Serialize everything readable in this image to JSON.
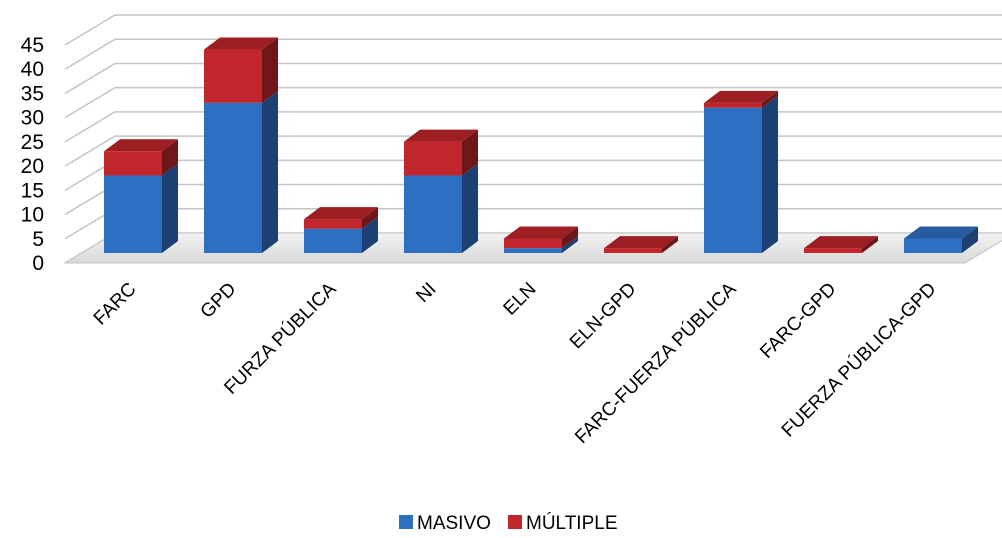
{
  "chart_data": {
    "type": "bar",
    "stacked": true,
    "three_d": true,
    "title": "",
    "xlabel": "",
    "ylabel": "",
    "ylim": [
      0,
      45
    ],
    "yticks": [
      0,
      5,
      10,
      15,
      20,
      25,
      30,
      35,
      40,
      45
    ],
    "grid": true,
    "legend_position": "bottom",
    "categories": [
      "FARC",
      "GPD",
      "FURZA PÚBLICA",
      "NI",
      "ELN",
      "ELN-GPD",
      "FARC-FUERZA PÚBLICA",
      "FARC-GPD",
      "FUERZA PÚBLICA-GPD"
    ],
    "series": [
      {
        "name": "MASIVO",
        "color": "#2f6fc2",
        "values": [
          16,
          31,
          5,
          16,
          1,
          0,
          30,
          0,
          3
        ]
      },
      {
        "name": "MÚLTIPLE",
        "color": "#c0262c",
        "values": [
          5,
          11,
          2,
          7,
          2,
          1,
          1,
          1,
          0
        ]
      }
    ]
  }
}
